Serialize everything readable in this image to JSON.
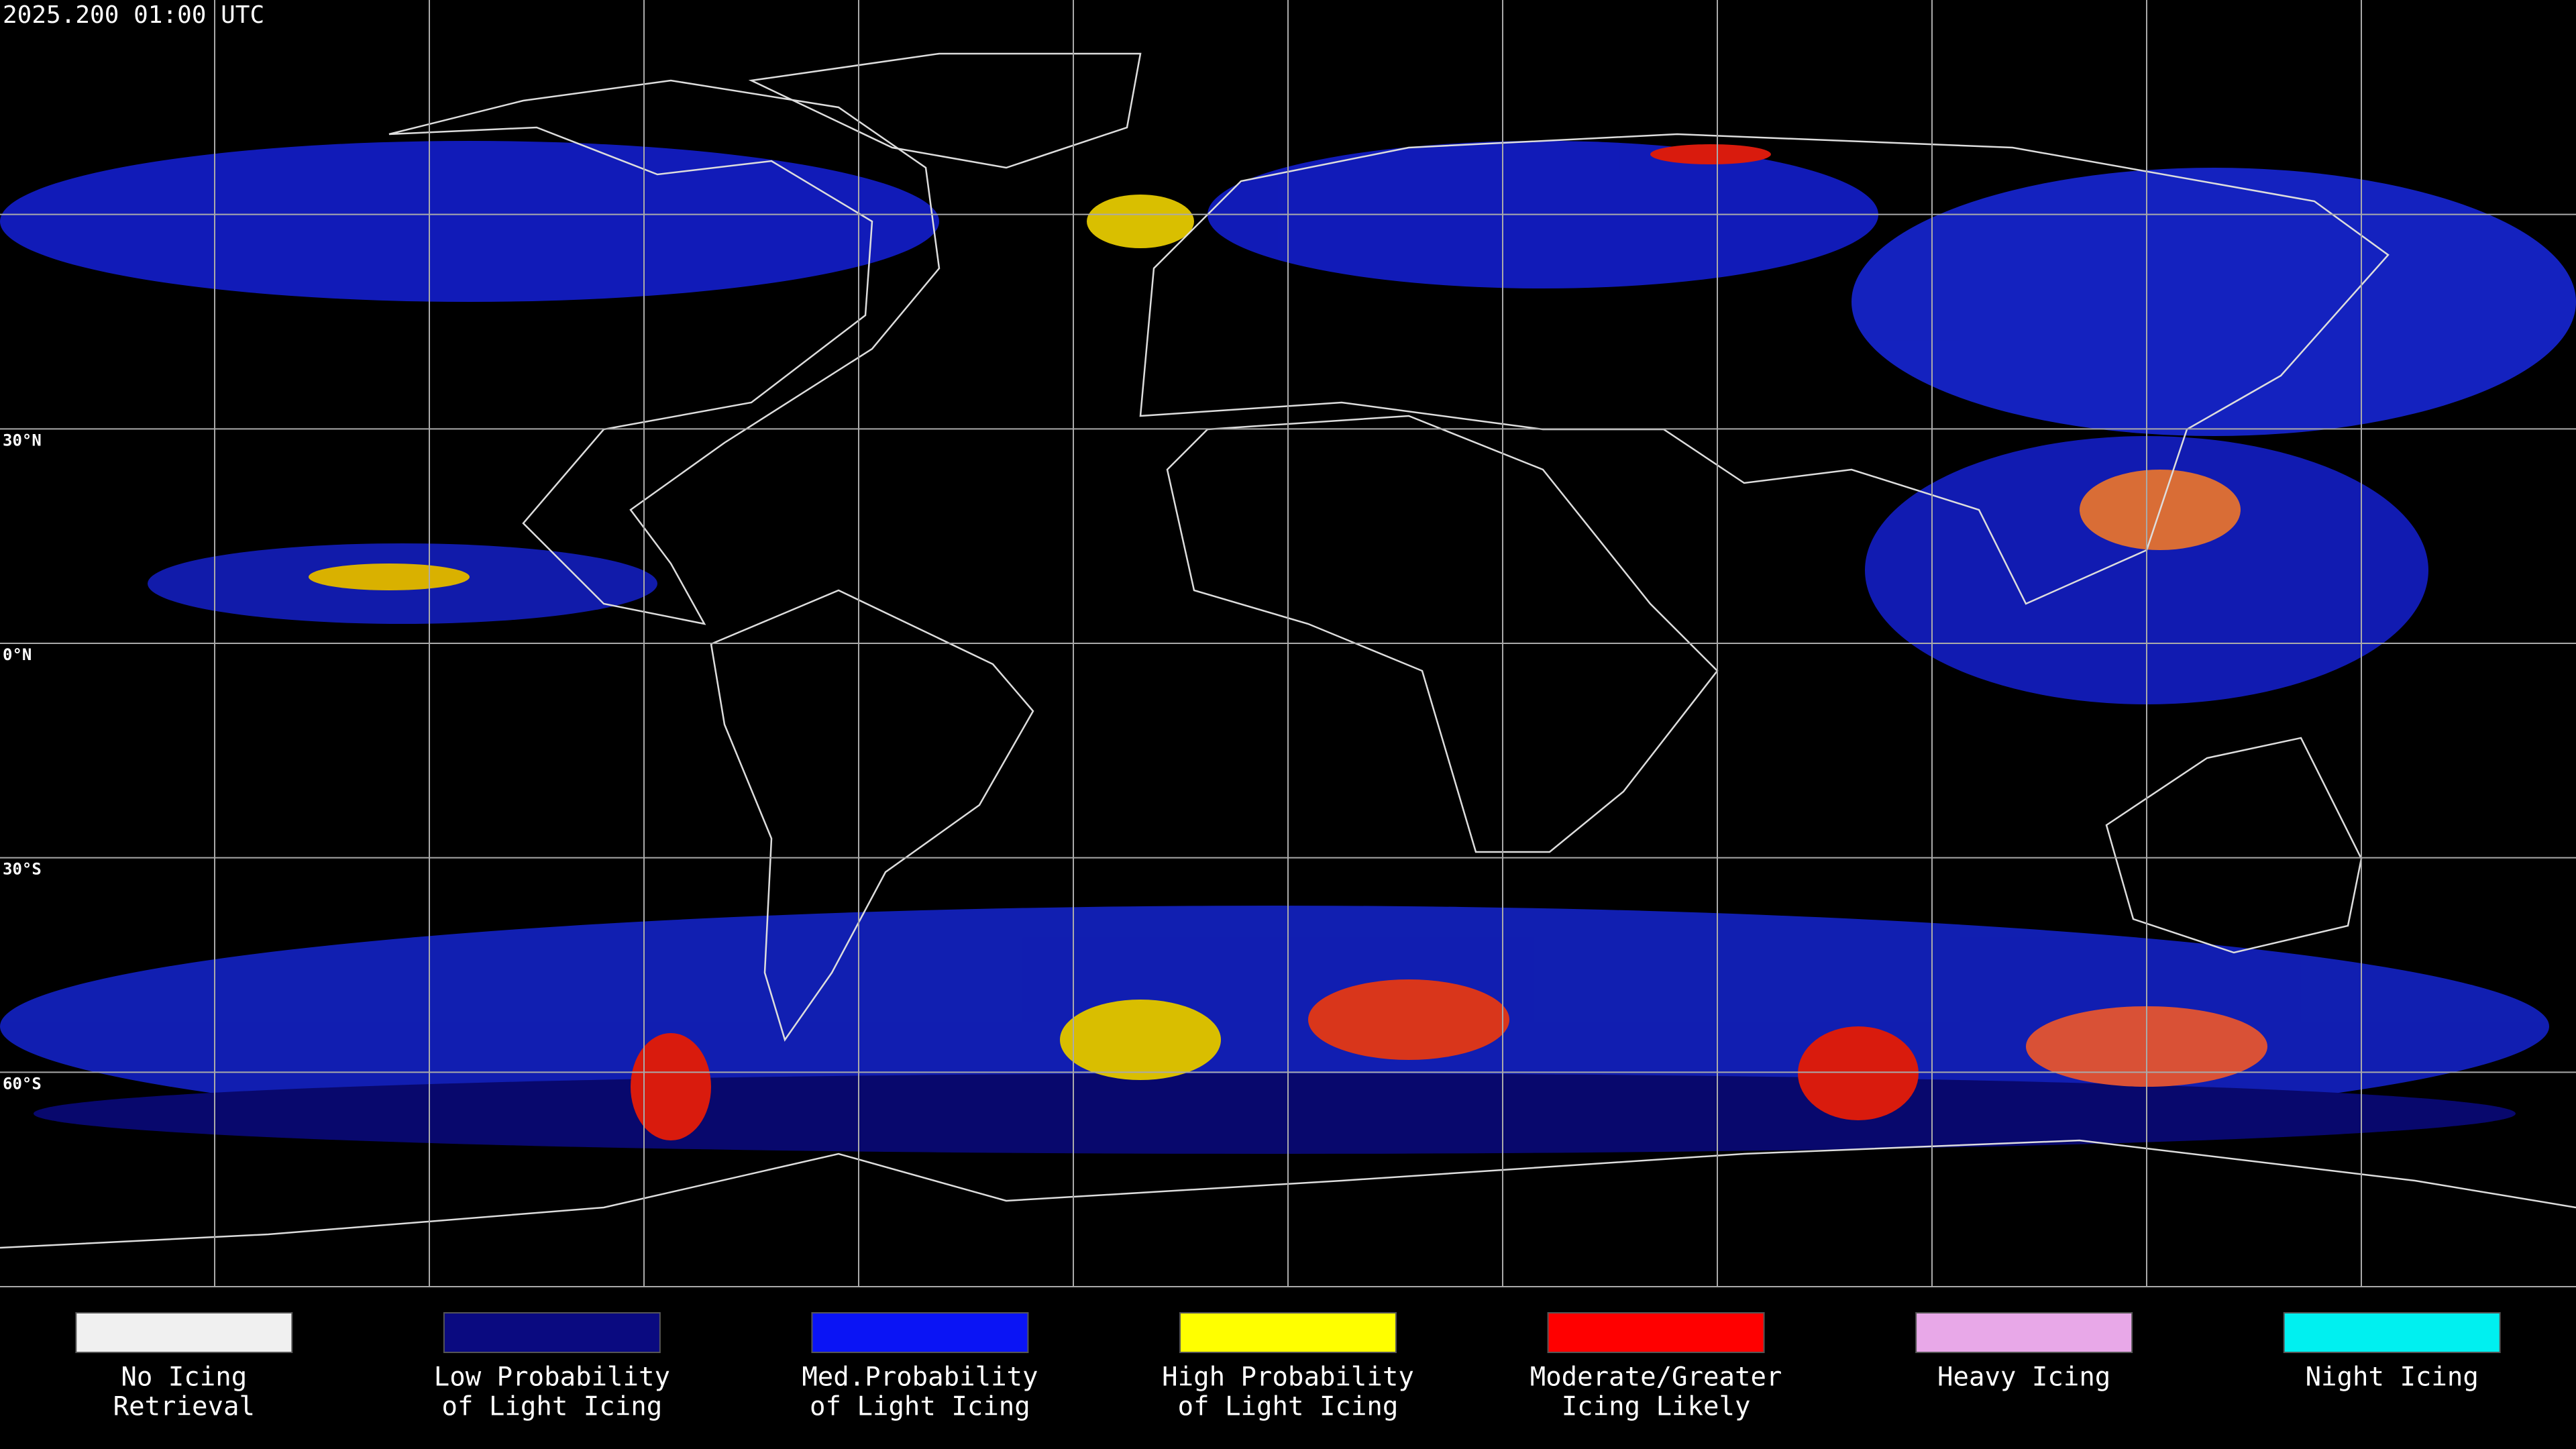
{
  "header": {
    "title": "2025.200 01:00 UTC"
  },
  "map": {
    "latitude_labels": [
      "30°N",
      "0°N",
      "30°S",
      "60°S"
    ]
  },
  "legend": [
    {
      "color": "#f0f0f0",
      "lines": [
        "No Icing",
        "Retrieval"
      ]
    },
    {
      "color": "#0a0a80",
      "lines": [
        "Low Probability",
        "of Light Icing"
      ]
    },
    {
      "color": "#0a14f5",
      "lines": [
        "Med.Probability",
        "of Light Icing"
      ]
    },
    {
      "color": "#ffff00",
      "lines": [
        "High Probability",
        "of Light Icing"
      ]
    },
    {
      "color": "#ff0000",
      "lines": [
        "Moderate/Greater",
        "Icing Likely"
      ]
    },
    {
      "color": "#e8a8e8",
      "lines": [
        "Heavy Icing"
      ]
    },
    {
      "color": "#00f0f0",
      "lines": [
        "Night Icing"
      ]
    }
  ]
}
